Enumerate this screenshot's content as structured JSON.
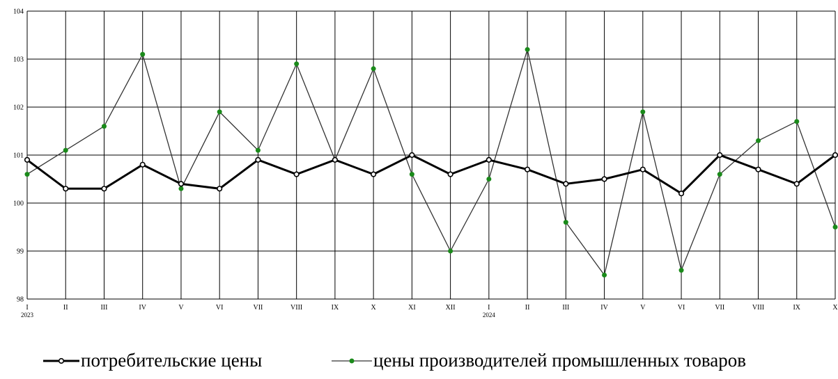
{
  "chart_data": {
    "type": "line",
    "categories": [
      "I",
      "II",
      "III",
      "IV",
      "V",
      "VI",
      "VII",
      "VIII",
      "IX",
      "X",
      "XI",
      "XII",
      "I",
      "II",
      "III",
      "IV",
      "V",
      "VI",
      "VII",
      "VIII",
      "IX",
      "X"
    ],
    "year_labels": [
      "2023",
      "",
      "",
      "",
      "",
      "",
      "",
      "",
      "",
      "",
      "",
      "",
      "2024",
      "",
      "",
      "",
      "",
      "",
      "",
      "",
      "",
      ""
    ],
    "ylim": [
      98,
      104
    ],
    "yticks": [
      "98",
      "99",
      "100",
      "101",
      "102",
      "103",
      "104"
    ],
    "grid": true,
    "legend_position": "bottom",
    "series": [
      {
        "name": "потребительские цены",
        "color": "#000000",
        "values": [
          100.9,
          100.3,
          100.3,
          100.8,
          100.4,
          100.3,
          100.9,
          100.6,
          100.9,
          100.6,
          101.0,
          100.6,
          100.9,
          100.7,
          100.4,
          100.5,
          100.7,
          100.2,
          101.0,
          100.7,
          100.4,
          101.0
        ]
      },
      {
        "name": "цены производителей промышленных товаров",
        "color": "#1a8a1a",
        "values": [
          100.6,
          101.1,
          101.6,
          103.1,
          100.3,
          101.9,
          101.1,
          102.9,
          100.9,
          102.8,
          100.6,
          99.0,
          100.5,
          103.2,
          99.6,
          98.5,
          101.9,
          98.6,
          100.6,
          101.3,
          101.7,
          99.5
        ]
      }
    ]
  }
}
